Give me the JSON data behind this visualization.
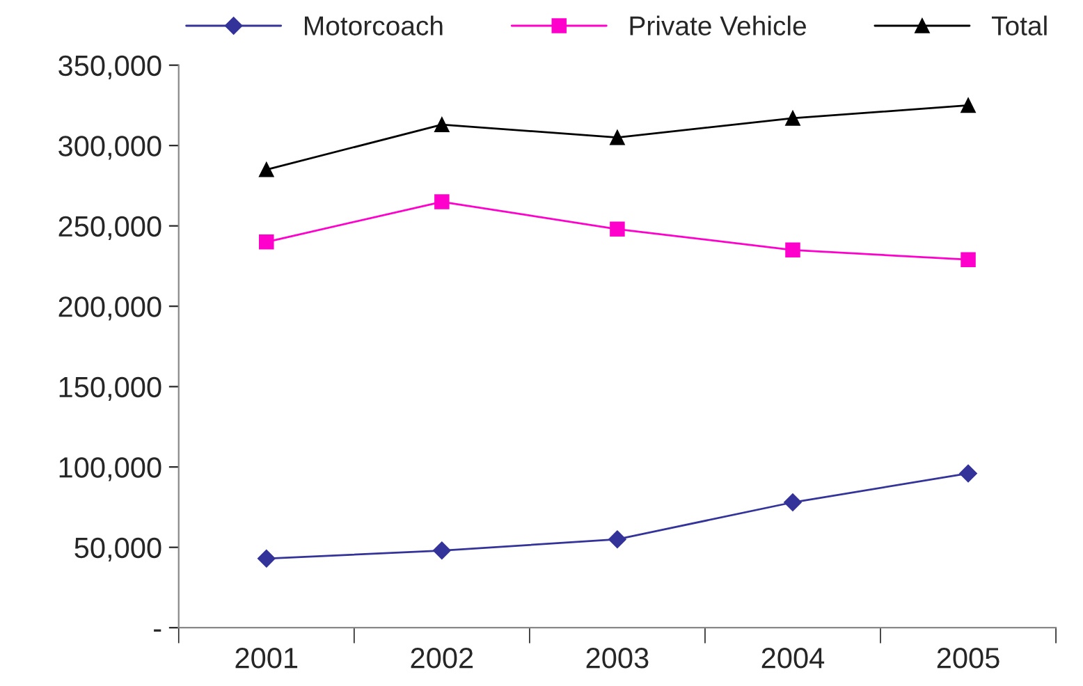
{
  "chart_data": {
    "type": "line",
    "categories": [
      "2001",
      "2002",
      "2003",
      "2004",
      "2005"
    ],
    "series": [
      {
        "name": "Motorcoach",
        "color": "#333399",
        "marker": "diamond",
        "values": [
          43000,
          48000,
          55000,
          78000,
          96000
        ]
      },
      {
        "name": "Private Vehicle",
        "color": "#ff00cc",
        "marker": "square",
        "values": [
          240000,
          265000,
          248000,
          235000,
          229000
        ]
      },
      {
        "name": "Total",
        "color": "#000000",
        "marker": "triangle",
        "values": [
          285000,
          313000,
          305000,
          317000,
          325000
        ]
      }
    ],
    "ylim": [
      0,
      350000
    ],
    "yticks": [
      {
        "value": 0,
        "label": "-"
      },
      {
        "value": 50000,
        "label": "50,000"
      },
      {
        "value": 100000,
        "label": "100,000"
      },
      {
        "value": 150000,
        "label": "150,000"
      },
      {
        "value": 200000,
        "label": "200,000"
      },
      {
        "value": 250000,
        "label": "250,000"
      },
      {
        "value": 300000,
        "label": "300,000"
      },
      {
        "value": 350000,
        "label": "350,000"
      }
    ],
    "grid": false,
    "legend": "top",
    "line_style": "solid"
  }
}
